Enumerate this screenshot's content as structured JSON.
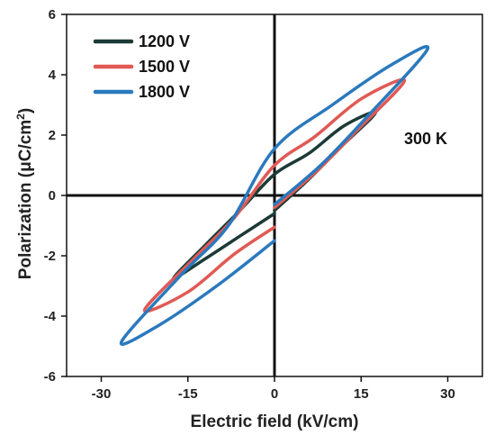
{
  "chart_data": {
    "type": "line",
    "xlabel": "Electric field (kV/cm)",
    "ylabel_main": "Polarization (μC/cm",
    "ylabel_sup": "2",
    "ylabel_end": ")",
    "xlim": [
      -36,
      36
    ],
    "ylim": [
      -6,
      6
    ],
    "xticks": [
      -30,
      -15,
      0,
      15,
      30
    ],
    "xtick_labels": [
      "-30",
      "-15",
      "0",
      "15",
      "30"
    ],
    "yticks": [
      -6,
      -4,
      -2,
      0,
      2,
      4,
      6
    ],
    "ytick_labels": [
      "-6",
      "-4",
      "-2",
      "0",
      "2",
      "4",
      "6"
    ],
    "annotation": "300 K",
    "legend_position": "top-left",
    "series": [
      {
        "name": "1200 V",
        "color": "#1c3a36",
        "x": [
          0,
          6,
          12,
          17.5,
          12,
          6,
          0,
          -6,
          -12,
          -17.5,
          -12,
          -6,
          0
        ],
        "y": [
          -0.5,
          0.55,
          1.7,
          2.75,
          2.3,
          1.4,
          0.7,
          -0.5,
          -1.65,
          -2.75,
          -2.1,
          -1.35,
          -0.6
        ]
      },
      {
        "name": "1500 V",
        "color": "#e05a55",
        "x": [
          0,
          7,
          14,
          22.5,
          15,
          7,
          0,
          -7,
          -14,
          -22.5,
          -15,
          -7,
          0
        ],
        "y": [
          -0.4,
          0.75,
          2.1,
          3.8,
          3.2,
          1.95,
          1.0,
          -0.75,
          -2.1,
          -3.8,
          -3.2,
          -1.95,
          -1.05
        ]
      },
      {
        "name": "1800 V",
        "color": "#2a79be",
        "x": [
          0,
          8,
          16,
          26.5,
          20,
          10,
          0,
          -8,
          -16,
          -26.5,
          -20,
          -10,
          0
        ],
        "y": [
          -0.3,
          1.0,
          2.6,
          4.85,
          4.3,
          3.0,
          1.55,
          -1.0,
          -2.6,
          -4.85,
          -4.3,
          -3.0,
          -1.5
        ]
      }
    ]
  }
}
